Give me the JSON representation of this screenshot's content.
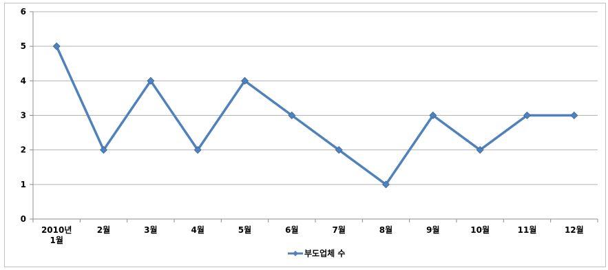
{
  "chart_data": {
    "type": "line",
    "categories": [
      "2010년\n1월",
      "2월",
      "3월",
      "4월",
      "5월",
      "6월",
      "7월",
      "8월",
      "9월",
      "10월",
      "11월",
      "12월"
    ],
    "series": [
      {
        "name": "부도업체 수",
        "values": [
          5,
          2,
          4,
          2,
          4,
          3,
          2,
          1,
          3,
          2,
          3,
          3
        ],
        "color": "#4f81bd"
      }
    ],
    "ylim": [
      0,
      6
    ],
    "yticks": [
      "0",
      "1",
      "2",
      "3",
      "4",
      "5",
      "6"
    ],
    "grid": true,
    "legend": "bottom-center",
    "marker": "diamond"
  }
}
